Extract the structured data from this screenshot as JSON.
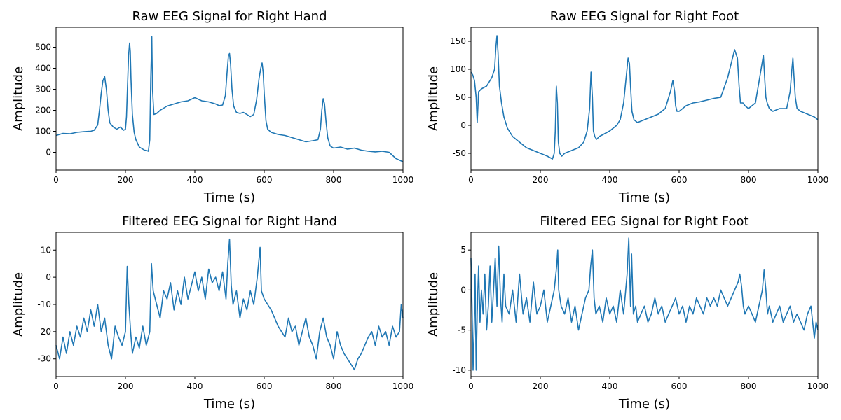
{
  "chart_data": [
    {
      "type": "line",
      "title": "Raw EEG Signal for Right Hand",
      "xlabel": "Time (s)",
      "ylabel": "Amplitude",
      "xlim": [
        0,
        1000
      ],
      "ylim": [
        -85,
        595
      ],
      "xticks": [
        0,
        200,
        400,
        600,
        800,
        1000
      ],
      "yticks": [
        0,
        100,
        200,
        300,
        400,
        500
      ],
      "grid": false,
      "color": "#1f77b4",
      "series": [
        {
          "x": [
            0,
            20,
            40,
            60,
            80,
            100,
            110,
            120,
            125,
            130,
            135,
            140,
            145,
            150,
            155,
            165,
            175,
            185,
            195,
            200,
            203,
            206,
            209,
            212,
            214,
            216,
            220,
            225,
            230,
            240,
            250,
            255,
            262,
            266,
            270,
            273,
            276,
            278,
            282,
            290,
            300,
            320,
            340,
            360,
            380,
            400,
            420,
            440,
            460,
            470,
            480,
            488,
            493,
            497,
            500,
            503,
            507,
            512,
            520,
            530,
            540,
            560,
            570,
            578,
            585,
            590,
            594,
            597,
            600,
            605,
            610,
            620,
            640,
            660,
            680,
            700,
            720,
            740,
            755,
            762,
            766,
            770,
            774,
            778,
            783,
            790,
            800,
            820,
            840,
            860,
            880,
            900,
            920,
            940,
            960,
            980,
            1000
          ],
          "y": [
            80,
            90,
            88,
            95,
            98,
            100,
            105,
            130,
            200,
            280,
            340,
            360,
            300,
            200,
            140,
            120,
            110,
            120,
            105,
            110,
            170,
            320,
            460,
            520,
            480,
            350,
            180,
            95,
            60,
            25,
            15,
            10,
            8,
            5,
            60,
            350,
            550,
            300,
            180,
            185,
            200,
            220,
            230,
            240,
            245,
            260,
            245,
            240,
            230,
            222,
            225,
            270,
            380,
            460,
            470,
            420,
            300,
            220,
            190,
            185,
            190,
            170,
            180,
            250,
            350,
            400,
            425,
            380,
            280,
            150,
            110,
            95,
            85,
            80,
            70,
            60,
            50,
            55,
            60,
            110,
            200,
            255,
            230,
            150,
            70,
            30,
            20,
            25,
            15,
            20,
            10,
            5,
            2,
            5,
            0,
            -30,
            -45
          ]
        }
      ]
    },
    {
      "type": "line",
      "title": "Raw EEG Signal for Right Foot",
      "xlabel": "Time (s)",
      "ylabel": "Amplitude",
      "xlim": [
        0,
        1000
      ],
      "ylim": [
        -80,
        175
      ],
      "xticks": [
        0,
        200,
        400,
        600,
        800,
        1000
      ],
      "yticks": [
        -50,
        0,
        50,
        100,
        150
      ],
      "grid": false,
      "color": "#1f77b4",
      "series": [
        {
          "x": [
            0,
            5,
            10,
            15,
            18,
            22,
            30,
            45,
            60,
            68,
            72,
            75,
            78,
            82,
            88,
            95,
            105,
            120,
            140,
            160,
            180,
            200,
            220,
            235,
            240,
            243,
            246,
            249,
            252,
            256,
            262,
            270,
            290,
            310,
            325,
            335,
            342,
            346,
            350,
            353,
            357,
            362,
            370,
            385,
            400,
            420,
            430,
            440,
            448,
            453,
            457,
            460,
            464,
            470,
            480,
            500,
            520,
            540,
            560,
            575,
            582,
            587,
            590,
            594,
            600,
            610,
            620,
            640,
            660,
            680,
            700,
            720,
            740,
            760,
            768,
            773,
            777,
            780,
            784,
            790,
            800,
            820,
            835,
            843,
            847,
            850,
            854,
            860,
            870,
            890,
            910,
            920,
            925,
            928,
            931,
            935,
            940,
            950,
            970,
            990,
            1000
          ],
          "y": [
            95,
            90,
            80,
            50,
            5,
            60,
            65,
            70,
            85,
            100,
            140,
            160,
            130,
            70,
            40,
            15,
            -5,
            -20,
            -30,
            -40,
            -45,
            -50,
            -55,
            -60,
            -50,
            -10,
            70,
            40,
            -30,
            -50,
            -55,
            -50,
            -45,
            -40,
            -30,
            -10,
            30,
            95,
            50,
            -10,
            -20,
            -25,
            -20,
            -15,
            -10,
            0,
            10,
            40,
            90,
            120,
            110,
            70,
            25,
            10,
            5,
            10,
            15,
            20,
            30,
            60,
            80,
            60,
            35,
            25,
            25,
            30,
            35,
            40,
            42,
            45,
            48,
            50,
            85,
            135,
            120,
            70,
            40,
            40,
            40,
            35,
            30,
            40,
            95,
            125,
            80,
            50,
            40,
            30,
            25,
            30,
            30,
            60,
            100,
            120,
            90,
            50,
            30,
            25,
            20,
            15,
            10
          ]
        }
      ]
    },
    {
      "type": "line",
      "title": "Filtered EEG Signal for Right Hand",
      "xlabel": "Time (s)",
      "ylabel": "Amplitude",
      "xlim": [
        0,
        1000
      ],
      "ylim": [
        -36.5,
        16.5
      ],
      "xticks": [
        0,
        200,
        400,
        600,
        800,
        1000
      ],
      "yticks": [
        -30,
        -20,
        -10,
        0,
        10
      ],
      "grid": false,
      "color": "#1f77b4",
      "series": [
        {
          "x": [
            0,
            10,
            20,
            30,
            40,
            50,
            60,
            70,
            80,
            90,
            100,
            110,
            120,
            130,
            140,
            150,
            160,
            170,
            180,
            190,
            200,
            205,
            210,
            215,
            220,
            230,
            240,
            250,
            260,
            270,
            275,
            280,
            290,
            300,
            310,
            320,
            330,
            340,
            350,
            360,
            370,
            380,
            390,
            400,
            410,
            420,
            430,
            440,
            450,
            460,
            470,
            480,
            490,
            495,
            500,
            505,
            510,
            520,
            530,
            540,
            550,
            560,
            570,
            580,
            588,
            592,
            600,
            610,
            620,
            630,
            640,
            650,
            660,
            670,
            680,
            690,
            700,
            710,
            720,
            730,
            740,
            750,
            760,
            770,
            780,
            790,
            800,
            810,
            820,
            830,
            840,
            850,
            860,
            870,
            880,
            890,
            900,
            910,
            920,
            930,
            940,
            950,
            960,
            970,
            980,
            990,
            995,
            1000
          ],
          "y": [
            -25,
            -30,
            -22,
            -28,
            -20,
            -25,
            -18,
            -22,
            -15,
            -20,
            -12,
            -18,
            -10,
            -20,
            -15,
            -25,
            -30,
            -18,
            -22,
            -25,
            -20,
            4,
            -10,
            -20,
            -28,
            -22,
            -26,
            -18,
            -25,
            -20,
            5,
            -5,
            -10,
            -15,
            -5,
            -8,
            -2,
            -12,
            -5,
            -10,
            0,
            -8,
            -3,
            2,
            -5,
            0,
            -8,
            3,
            -2,
            0,
            -5,
            2,
            -8,
            5,
            14,
            -3,
            -10,
            -5,
            -15,
            -8,
            -12,
            -5,
            -10,
            0,
            11,
            -5,
            -8,
            -10,
            -12,
            -15,
            -18,
            -20,
            -22,
            -15,
            -20,
            -18,
            -25,
            -20,
            -15,
            -22,
            -25,
            -30,
            -20,
            -15,
            -22,
            -25,
            -30,
            -20,
            -25,
            -28,
            -30,
            -32,
            -34,
            -30,
            -28,
            -25,
            -22,
            -20,
            -25,
            -18,
            -22,
            -20,
            -25,
            -18,
            -22,
            -20,
            -10,
            -15
          ]
        }
      ]
    },
    {
      "type": "line",
      "title": "Filtered EEG Signal for Right Foot",
      "xlabel": "Time (s)",
      "ylabel": "Amplitude",
      "xlim": [
        0,
        1000
      ],
      "ylim": [
        -10.8,
        7.2
      ],
      "xticks": [
        0,
        200,
        400,
        600,
        800,
        1000
      ],
      "yticks": [
        -10,
        -5,
        0,
        5
      ],
      "grid": false,
      "color": "#1f77b4",
      "series": [
        {
          "x": [
            0,
            3,
            6,
            9,
            12,
            15,
            18,
            22,
            26,
            30,
            35,
            40,
            45,
            50,
            55,
            60,
            65,
            70,
            75,
            80,
            85,
            90,
            95,
            100,
            110,
            120,
            130,
            140,
            150,
            160,
            170,
            180,
            190,
            200,
            210,
            220,
            230,
            240,
            247,
            250,
            253,
            260,
            270,
            280,
            290,
            300,
            310,
            320,
            330,
            340,
            345,
            350,
            355,
            360,
            370,
            380,
            390,
            400,
            410,
            420,
            430,
            440,
            450,
            455,
            460,
            463,
            468,
            475,
            480,
            490,
            500,
            510,
            520,
            530,
            540,
            550,
            560,
            570,
            580,
            590,
            600,
            610,
            620,
            630,
            640,
            650,
            660,
            670,
            680,
            690,
            700,
            710,
            720,
            730,
            740,
            750,
            760,
            770,
            775,
            780,
            785,
            790,
            800,
            810,
            820,
            830,
            840,
            845,
            850,
            855,
            860,
            870,
            880,
            890,
            900,
            910,
            920,
            930,
            940,
            950,
            960,
            970,
            980,
            990,
            995,
            1000
          ],
          "y": [
            4,
            -2,
            -10,
            -5,
            2,
            -10,
            -3,
            3,
            -4,
            0,
            -3,
            2,
            -5,
            -2,
            3,
            -4,
            0,
            4,
            -2,
            5.5,
            -1,
            -4,
            2,
            -2,
            -3,
            0,
            -4,
            2,
            -3,
            -1,
            -4,
            1,
            -3,
            -2,
            0,
            -4,
            -2,
            0,
            3,
            5,
            0,
            -2,
            -3,
            -1,
            -4,
            -2,
            -5,
            -3,
            -1,
            0,
            3,
            5,
            -1,
            -3,
            -2,
            -4,
            -1,
            -3,
            -2,
            -4,
            0,
            -3,
            2,
            6.5,
            -2,
            4.5,
            -3,
            -2,
            -4,
            -3,
            -2,
            -4,
            -3,
            -1,
            -3,
            -2,
            -4,
            -3,
            -2,
            -1,
            -3,
            -2,
            -4,
            -2,
            -3,
            -1,
            -2,
            -3,
            -1,
            -2,
            -1,
            -2,
            0,
            -1,
            -2,
            -1,
            0,
            1,
            2,
            0.5,
            -2,
            -3,
            -2,
            -3,
            -4,
            -2,
            0,
            2.5,
            0,
            -3,
            -2,
            -4,
            -3,
            -2,
            -4,
            -3,
            -2,
            -4,
            -3,
            -4,
            -5,
            -3,
            -2,
            -6,
            -4,
            -5
          ]
        }
      ]
    }
  ]
}
